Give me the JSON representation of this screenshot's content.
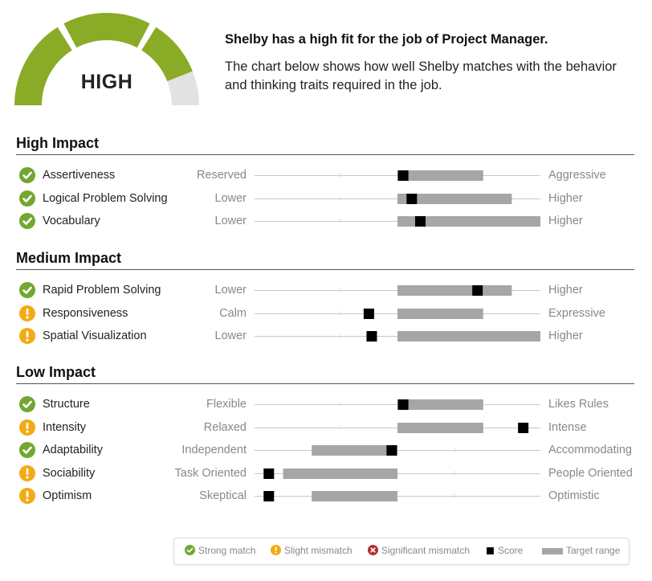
{
  "gauge": {
    "level_label": "HIGH",
    "fill_fraction": 0.88,
    "colors": {
      "fill": "#8aab26",
      "empty": "#e2e2e2"
    }
  },
  "header": {
    "headline": "Shelby has a high fit for the job of Project Manager.",
    "description": "The chart below shows how well Shelby matches with the behavior and thinking traits required in the job."
  },
  "colors": {
    "strong": "#73a730",
    "slight": "#f2aa15",
    "significant": "#b0302c",
    "range": "#a6a6a6",
    "score": "#000000",
    "line": "#c8c8c8"
  },
  "chart_data": {
    "type": "range-scale",
    "scale": {
      "min": 0,
      "max": 10
    },
    "sections": [
      {
        "title": "High Impact",
        "traits": [
          {
            "name": "Assertiveness",
            "low": "Reserved",
            "high": "Aggressive",
            "status": "strong",
            "range": [
              5,
              8
            ],
            "score": 5.2
          },
          {
            "name": "Logical Problem Solving",
            "low": "Lower",
            "high": "Higher",
            "status": "strong",
            "range": [
              5,
              9
            ],
            "score": 5.5
          },
          {
            "name": "Vocabulary",
            "low": "Lower",
            "high": "Higher",
            "status": "strong",
            "range": [
              5,
              10
            ],
            "score": 5.8
          }
        ]
      },
      {
        "title": "Medium Impact",
        "traits": [
          {
            "name": "Rapid Problem Solving",
            "low": "Lower",
            "high": "Higher",
            "status": "strong",
            "range": [
              5,
              9
            ],
            "score": 7.8
          },
          {
            "name": "Responsiveness",
            "low": "Calm",
            "high": "Expressive",
            "status": "slight",
            "range": [
              5,
              8
            ],
            "score": 4
          },
          {
            "name": "Spatial Visualization",
            "low": "Lower",
            "high": "Higher",
            "status": "slight",
            "range": [
              5,
              10
            ],
            "score": 4.1
          }
        ]
      },
      {
        "title": "Low Impact",
        "traits": [
          {
            "name": "Structure",
            "low": "Flexible",
            "high": "Likes Rules",
            "status": "strong",
            "range": [
              5,
              8
            ],
            "score": 5.2
          },
          {
            "name": "Intensity",
            "low": "Relaxed",
            "high": "Intense",
            "status": "slight",
            "range": [
              5,
              8
            ],
            "score": 9.4
          },
          {
            "name": "Adaptability",
            "low": "Independent",
            "high": "Accommodating",
            "status": "strong",
            "range": [
              2,
              5
            ],
            "score": 4.8
          },
          {
            "name": "Sociability",
            "low": "Task Oriented",
            "high": "People Oriented",
            "status": "slight",
            "range": [
              1,
              5
            ],
            "score": 0.5
          },
          {
            "name": "Optimism",
            "low": "Skeptical",
            "high": "Optimistic",
            "status": "slight",
            "range": [
              2,
              5
            ],
            "score": 0.5
          }
        ]
      }
    ]
  },
  "legend": {
    "strong": "Strong match",
    "slight": "Slight mismatch",
    "significant": "Significant mismatch",
    "score": "Score",
    "range": "Target range"
  }
}
